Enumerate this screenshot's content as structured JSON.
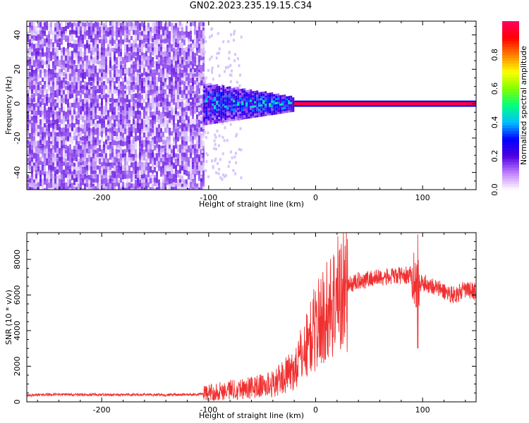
{
  "title": "GN02.2023.235.19.15.C34",
  "chart_data": [
    {
      "type": "heatmap",
      "xlabel": "Height of straight line (km)",
      "ylabel": "Frequency (Hz)",
      "xlim": [
        -270,
        150
      ],
      "ylim": [
        -50,
        48
      ],
      "xticks": [
        -200,
        -100,
        0,
        100
      ],
      "yticks": [
        -40,
        -20,
        0,
        20,
        40
      ],
      "colorbar": {
        "label": "Normalized spectral amplitude",
        "range": [
          0,
          1
        ],
        "ticks": [
          0.0,
          0.2,
          0.4,
          0.6,
          0.8
        ],
        "colors": [
          "#ffffff",
          "#c080ff",
          "#5000e0",
          "#0000ff",
          "#00c0ff",
          "#00ff80",
          "#80ff00",
          "#ffff00",
          "#ff8000",
          "#ff0000",
          "#ff0060"
        ]
      },
      "regions": [
        {
          "x_range": [
            -270,
            -105
          ],
          "freq_range": [
            -50,
            48
          ],
          "amplitude": 0.1,
          "description_color": "#7a2de6"
        },
        {
          "x_range": [
            -105,
            -20
          ],
          "freq_range": [
            -12,
            12
          ],
          "amplitude": 0.25
        },
        {
          "x_range": [
            -20,
            150
          ],
          "freq_range": [
            -1.5,
            1.5
          ],
          "amplitude": 0.95
        }
      ]
    },
    {
      "type": "line",
      "xlabel": "Height of straight line (km)",
      "ylabel": "SNR (10 * v/v)",
      "xlim": [
        -270,
        150
      ],
      "ylim": [
        0,
        9500
      ],
      "xticks": [
        -200,
        -100,
        0,
        100
      ],
      "yticks": [
        0,
        2000,
        4000,
        6000,
        8000
      ],
      "color": "#f03030",
      "series": [
        {
          "x": [
            -270,
            -250,
            -200,
            -150,
            -110,
            -100,
            -80,
            -60,
            -40,
            -20,
            -10,
            0,
            10,
            20,
            30,
            40,
            50,
            60,
            70,
            80,
            90,
            95,
            100,
            110,
            120,
            130,
            140,
            150
          ],
          "y": [
            350,
            380,
            370,
            360,
            380,
            500,
            700,
            800,
            1000,
            1800,
            3000,
            4200,
            5000,
            6000,
            6500,
            6800,
            6900,
            7000,
            7000,
            7100,
            7100,
            6700,
            6700,
            6500,
            6200,
            6000,
            6300,
            6200
          ]
        }
      ]
    }
  ]
}
